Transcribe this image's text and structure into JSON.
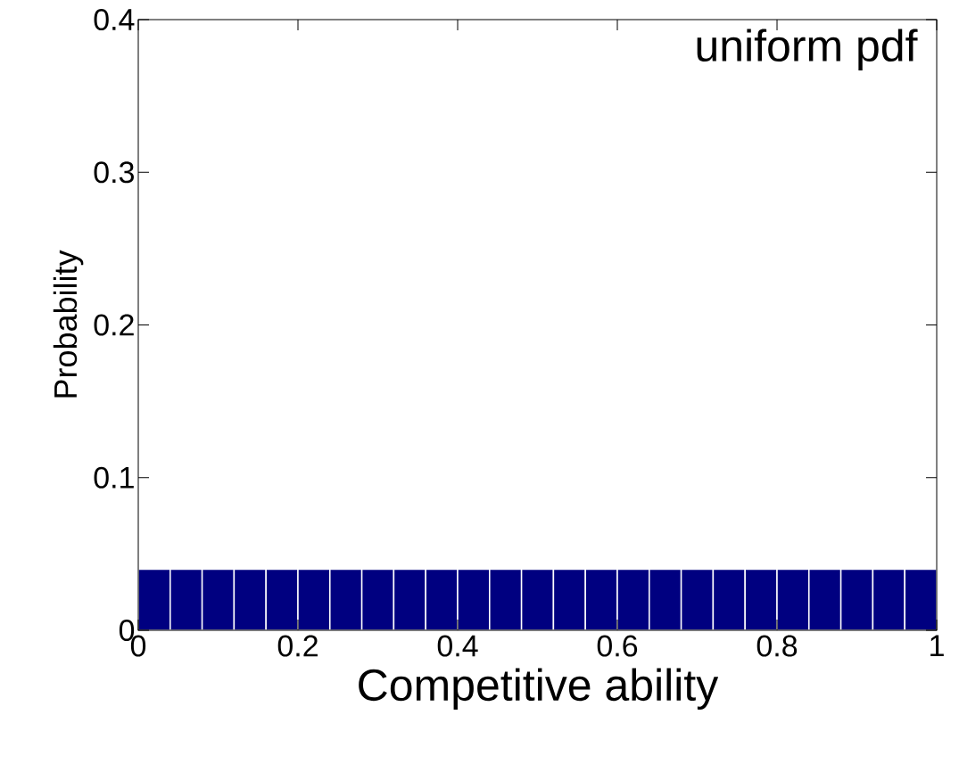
{
  "chart_data": {
    "type": "histogram",
    "xlabel": "Competitive ability",
    "ylabel": "Probability",
    "annotations": [
      "uniform pdf"
    ],
    "bins": [
      0,
      0.04,
      0.08,
      0.12,
      0.16,
      0.2,
      0.24,
      0.28,
      0.32,
      0.36,
      0.4,
      0.44,
      0.48,
      0.52,
      0.56,
      0.6,
      0.64,
      0.68,
      0.72,
      0.76,
      0.8,
      0.84,
      0.88,
      0.92,
      0.96,
      1
    ],
    "values": [
      0.04,
      0.04,
      0.04,
      0.04,
      0.04,
      0.04,
      0.04,
      0.04,
      0.04,
      0.04,
      0.04,
      0.04,
      0.04,
      0.04,
      0.04,
      0.04,
      0.04,
      0.04,
      0.04,
      0.04,
      0.04,
      0.04,
      0.04,
      0.04,
      0.04
    ],
    "color": "#000080",
    "xlim": [
      0,
      1
    ],
    "ylim": [
      0,
      0.4
    ],
    "xticks": [
      0,
      0.2,
      0.4,
      0.6,
      0.8,
      1
    ],
    "yticks": [
      0,
      0.1,
      0.2,
      0.3,
      0.4
    ]
  }
}
